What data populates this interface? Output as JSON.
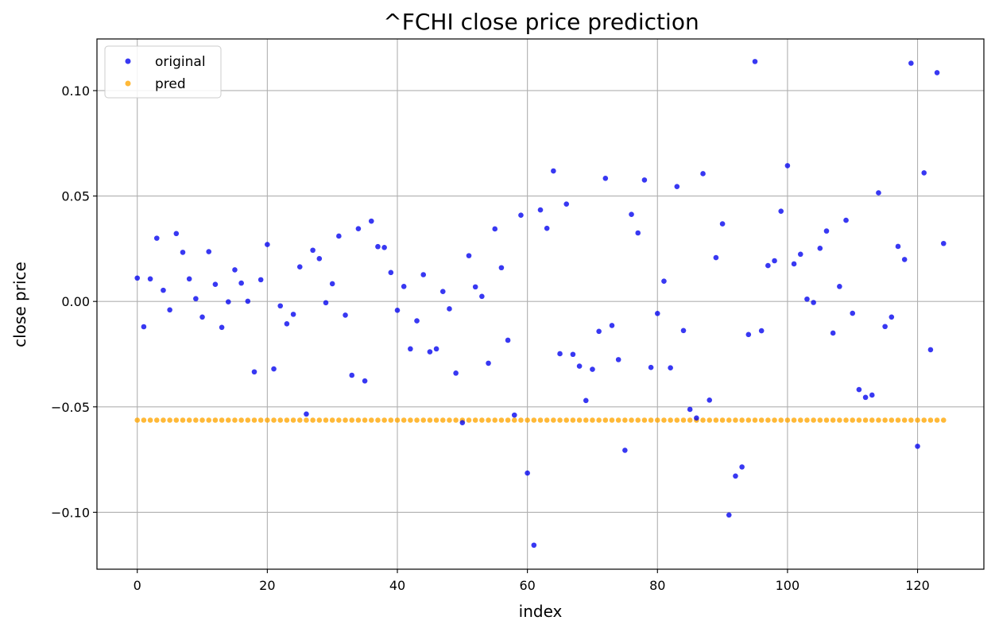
{
  "chart_data": {
    "type": "scatter",
    "title": "^FCHI close price prediction",
    "xlabel": "index",
    "ylabel": "close price",
    "xlim": [
      -6.2,
      130.2
    ],
    "ylim": [
      -0.127,
      0.1245
    ],
    "xticks": [
      0,
      20,
      40,
      60,
      80,
      100,
      120
    ],
    "xtick_labels": [
      "0",
      "20",
      "40",
      "60",
      "80",
      "100",
      "120"
    ],
    "yticks": [
      -0.1,
      -0.05,
      0.0,
      0.05,
      0.1
    ],
    "ytick_labels": [
      "−0.10",
      "−0.05",
      "0.00",
      "0.05",
      "0.10"
    ],
    "grid": true,
    "legend_position": "upper-left",
    "series": [
      {
        "name": "original",
        "color": "#0000ee",
        "y": [
          0.0111,
          -0.012,
          0.0107,
          0.03,
          0.0053,
          -0.004,
          0.0322,
          0.0233,
          0.0107,
          0.0013,
          -0.0074,
          0.0236,
          0.0081,
          -0.0123,
          -0.0002,
          0.015,
          0.0087,
          0.0001,
          -0.0334,
          0.0103,
          0.027,
          -0.032,
          -0.0021,
          -0.0106,
          -0.0061,
          0.0164,
          -0.0534,
          0.0243,
          0.0203,
          -0.0006,
          0.0084,
          0.031,
          -0.0065,
          -0.035,
          0.0345,
          -0.0377,
          0.0381,
          0.026,
          0.0256,
          0.0137,
          -0.0042,
          0.0071,
          -0.0225,
          -0.0092,
          0.0127,
          -0.0239,
          -0.0225,
          0.0047,
          -0.0035,
          -0.034,
          -0.0575,
          0.0217,
          0.0069,
          0.0024,
          -0.0293,
          0.0344,
          0.016,
          -0.0184,
          -0.0539,
          0.0409,
          -0.0814,
          -0.1156,
          0.0434,
          0.0347,
          0.0619,
          -0.0248,
          0.0462,
          -0.0251,
          -0.0307,
          -0.047,
          -0.0322,
          -0.0142,
          0.0584,
          -0.0114,
          -0.0276,
          -0.0706,
          0.0413,
          0.0325,
          0.0576,
          -0.0313,
          -0.0057,
          0.0096,
          -0.0315,
          0.0545,
          -0.0138,
          -0.0512,
          -0.0553,
          0.0606,
          -0.0468,
          0.0208,
          0.0368,
          -0.1013,
          -0.0828,
          -0.0785,
          -0.0157,
          0.1138,
          -0.0139,
          0.017,
          0.0193,
          0.0428,
          0.0644,
          0.0178,
          0.0224,
          0.0011,
          -0.0005,
          0.0252,
          0.0334,
          -0.015,
          0.0071,
          0.0385,
          -0.0056,
          -0.0418,
          -0.0455,
          -0.0444,
          0.0515,
          -0.0119,
          -0.0074,
          0.0261,
          0.0199,
          0.113,
          -0.0687,
          0.061,
          -0.0229,
          0.1085,
          0.0275
        ]
      },
      {
        "name": "pred",
        "color": "#ffa500",
        "constant": -0.0563,
        "count": 125
      }
    ]
  }
}
